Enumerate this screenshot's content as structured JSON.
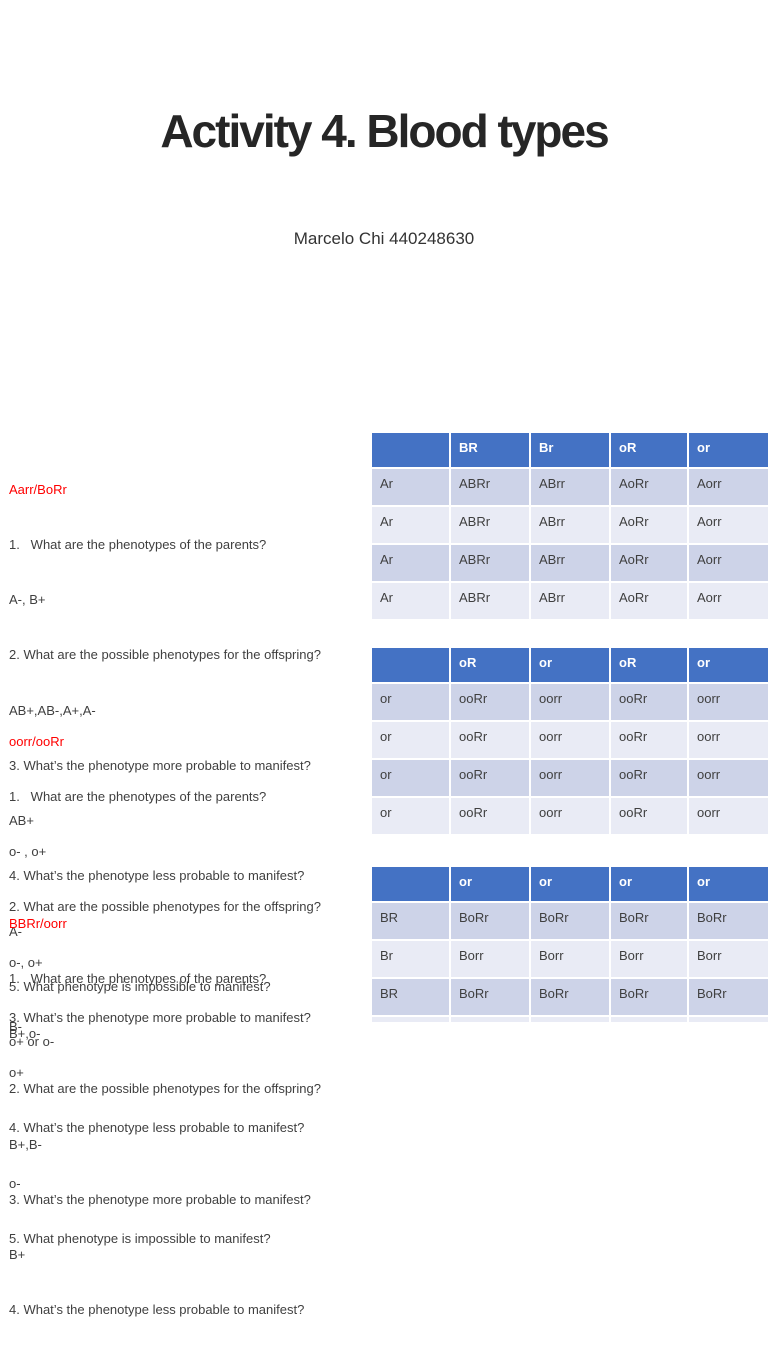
{
  "page": {
    "title": "Activity 4. Blood types",
    "subtitle": "Marcelo Chi 440248630"
  },
  "colors": {
    "table_header_blue": "#4472c4",
    "row_band_dark": "#cdd3e8",
    "row_band_light": "#e9ebf5",
    "section_heading_red": "#ff0000",
    "body_text_gray": "#3f3f3f",
    "title_text": "#262626"
  },
  "sections": [
    {
      "heading": "Aarr/BoRr",
      "lines": [
        "1.   What are the phenotypes of the parents?",
        "A-, B+",
        "2. What are the possible phenotypes for the offspring?",
        "AB+,AB-,A+,A-",
        "3. What’s the phenotype more probable to manifest?",
        "AB+",
        "4. What’s the phenotype less probable to manifest?",
        "A-",
        "5. What phenotype is impossible to manifest?",
        "o+ or o-"
      ]
    },
    {
      "heading": "oorr/ooRr",
      "lines": [
        "1.   What are the phenotypes of the parents?",
        "o- , o+",
        "2. What are the possible phenotypes for the offspring?",
        "o-, o+",
        "3. What’s the phenotype more probable to manifest?",
        "o+",
        "4. What’s the phenotype less probable to manifest?",
        "o-",
        "5. What phenotype is impossible to manifest?"
      ]
    },
    {
      "heading": "BBRr/oorr",
      "lines": [
        "1.   What are the phenotypes of the parents?",
        "B+,o-",
        "2. What are the possible phenotypes for the offspring?",
        "B+,B-",
        "3. What’s the phenotype more probable to manifest?",
        "B+",
        "4. What’s the phenotype less probable to manifest?"
      ],
      "clipped_answer": "B-"
    }
  ],
  "tables": [
    {
      "header": [
        "",
        "BR",
        "Br",
        "oR",
        "or"
      ],
      "rows": [
        [
          "Ar",
          "ABRr",
          "ABrr",
          "AoRr",
          "Aorr"
        ],
        [
          "Ar",
          "ABRr",
          "ABrr",
          "AoRr",
          "Aorr"
        ],
        [
          "Ar",
          "ABRr",
          "ABrr",
          "AoRr",
          "Aorr"
        ],
        [
          "Ar",
          "ABRr",
          "ABrr",
          "AoRr",
          "Aorr"
        ]
      ]
    },
    {
      "header": [
        "",
        "oR",
        "or",
        "oR",
        "or"
      ],
      "rows": [
        [
          "or",
          "ooRr",
          "oorr",
          "ooRr",
          "oorr"
        ],
        [
          "or",
          "ooRr",
          "oorr",
          "ooRr",
          "oorr"
        ],
        [
          "or",
          "ooRr",
          "oorr",
          "ooRr",
          "oorr"
        ],
        [
          "or",
          "ooRr",
          "oorr",
          "ooRr",
          "oorr"
        ]
      ]
    },
    {
      "header": [
        "",
        "or",
        "or",
        "or",
        "or"
      ],
      "rows": [
        [
          "BR",
          "BoRr",
          "BoRr",
          "BoRr",
          "BoRr"
        ],
        [
          "Br",
          "Borr",
          "Borr",
          "Borr",
          "Borr"
        ],
        [
          "BR",
          "BoRr",
          "BoRr",
          "BoRr",
          "BoRr"
        ],
        [
          "",
          "",
          "",
          "",
          ""
        ]
      ]
    }
  ]
}
